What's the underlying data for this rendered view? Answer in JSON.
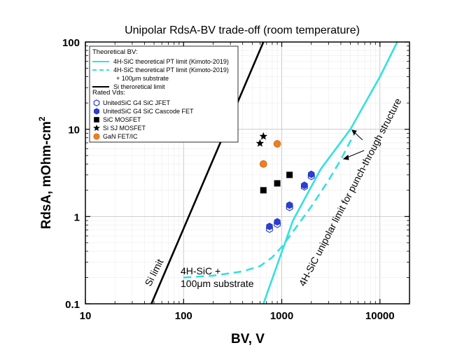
{
  "chart_data": {
    "type": "scatter",
    "title": "Unipolar RdsA-BV trade-off (room temperature)",
    "xlabel": "BV, V",
    "ylabel": "RdsA, mOhm-cm",
    "ylabel_sup": "2",
    "x_scale": "log",
    "y_scale": "log",
    "xlim": [
      10,
      20000
    ],
    "ylim": [
      0.1,
      100
    ],
    "x_ticks": [
      "10",
      "100",
      "1000",
      "10000"
    ],
    "y_ticks": [
      "0.1",
      "1",
      "10",
      "100"
    ],
    "grid": true,
    "legend_placement": "top-left",
    "legend": {
      "theoretical_header": "Theoretical BV:",
      "rated_header": "Rated Vds:",
      "line_entries": [
        {
          "id": "pt",
          "label": "4H-SiC theoretical PT limit (Kimoto-2019)",
          "color": "#33e0e0",
          "dash": "solid"
        },
        {
          "id": "pt_sub",
          "label": "4H-SiC theoretical PT limit (Kimoto-2019)",
          "label2": "+ 100μm substrate",
          "color": "#33e0e0",
          "dash": "dashed"
        },
        {
          "id": "si",
          "label": "Si theroretical limit",
          "color": "#000000",
          "dash": "solid"
        }
      ],
      "marker_entries": [
        {
          "id": "jfet",
          "label": "UnitedSiC G4 SiC JFET",
          "marker": "hexagon-open",
          "color": "#2b3fd6"
        },
        {
          "id": "cascode",
          "label": "UnitedSiC G4 SiC Cascode FET",
          "marker": "hexagon-filled",
          "color": "#2b3fd6"
        },
        {
          "id": "sic_mosfet",
          "label": "SiC MOSFET",
          "marker": "square",
          "color": "#000000"
        },
        {
          "id": "si_sj",
          "label": "Si SJ MOSFET",
          "marker": "star",
          "color": "#000000"
        },
        {
          "id": "gan",
          "label": "GaN FET/IC",
          "marker": "circle",
          "color": "#ee7f1f"
        }
      ]
    },
    "series": [
      {
        "ref": "si",
        "points": [
          [
            47,
            0.1
          ],
          [
            650,
            100
          ]
        ]
      },
      {
        "ref": "pt",
        "points": [
          [
            650,
            0.1
          ],
          [
            1300,
            0.9
          ],
          [
            2500,
            3.5
          ],
          [
            5000,
            10
          ],
          [
            10000,
            40
          ],
          [
            15000,
            100
          ]
        ]
      },
      {
        "ref": "pt_sub",
        "points": [
          [
            100,
            0.2
          ],
          [
            200,
            0.21
          ],
          [
            400,
            0.235
          ],
          [
            600,
            0.27
          ],
          [
            800,
            0.34
          ],
          [
            1000,
            0.45
          ],
          [
            1400,
            0.75
          ],
          [
            2000,
            1.3
          ],
          [
            3000,
            2.6
          ],
          [
            4000,
            4.5
          ],
          [
            5500,
            9
          ]
        ]
      },
      {
        "ref": "jfet",
        "points": [
          [
            750,
            0.72
          ],
          [
            900,
            0.82
          ],
          [
            1200,
            1.28
          ],
          [
            1700,
            2.2
          ],
          [
            2000,
            2.9
          ]
        ]
      },
      {
        "ref": "cascode",
        "points": [
          [
            750,
            0.77
          ],
          [
            900,
            0.87
          ],
          [
            1200,
            1.35
          ],
          [
            1700,
            2.28
          ],
          [
            2000,
            3.05
          ]
        ]
      },
      {
        "ref": "sic_mosfet",
        "points": [
          [
            650,
            2.0
          ],
          [
            900,
            2.4
          ],
          [
            1200,
            3.0
          ]
        ]
      },
      {
        "ref": "si_sj",
        "points": [
          [
            600,
            6.9
          ],
          [
            650,
            8.3
          ]
        ]
      },
      {
        "ref": "gan",
        "points": [
          [
            650,
            4.0
          ],
          [
            900,
            6.8
          ]
        ]
      }
    ],
    "annotations": {
      "si_limit": "Si limit",
      "sub_line1": "4H-SiC +",
      "sub_line2": "100μm substrate",
      "pt_limit": "4H-SiC unipolar limit for punch-through  structure"
    }
  }
}
